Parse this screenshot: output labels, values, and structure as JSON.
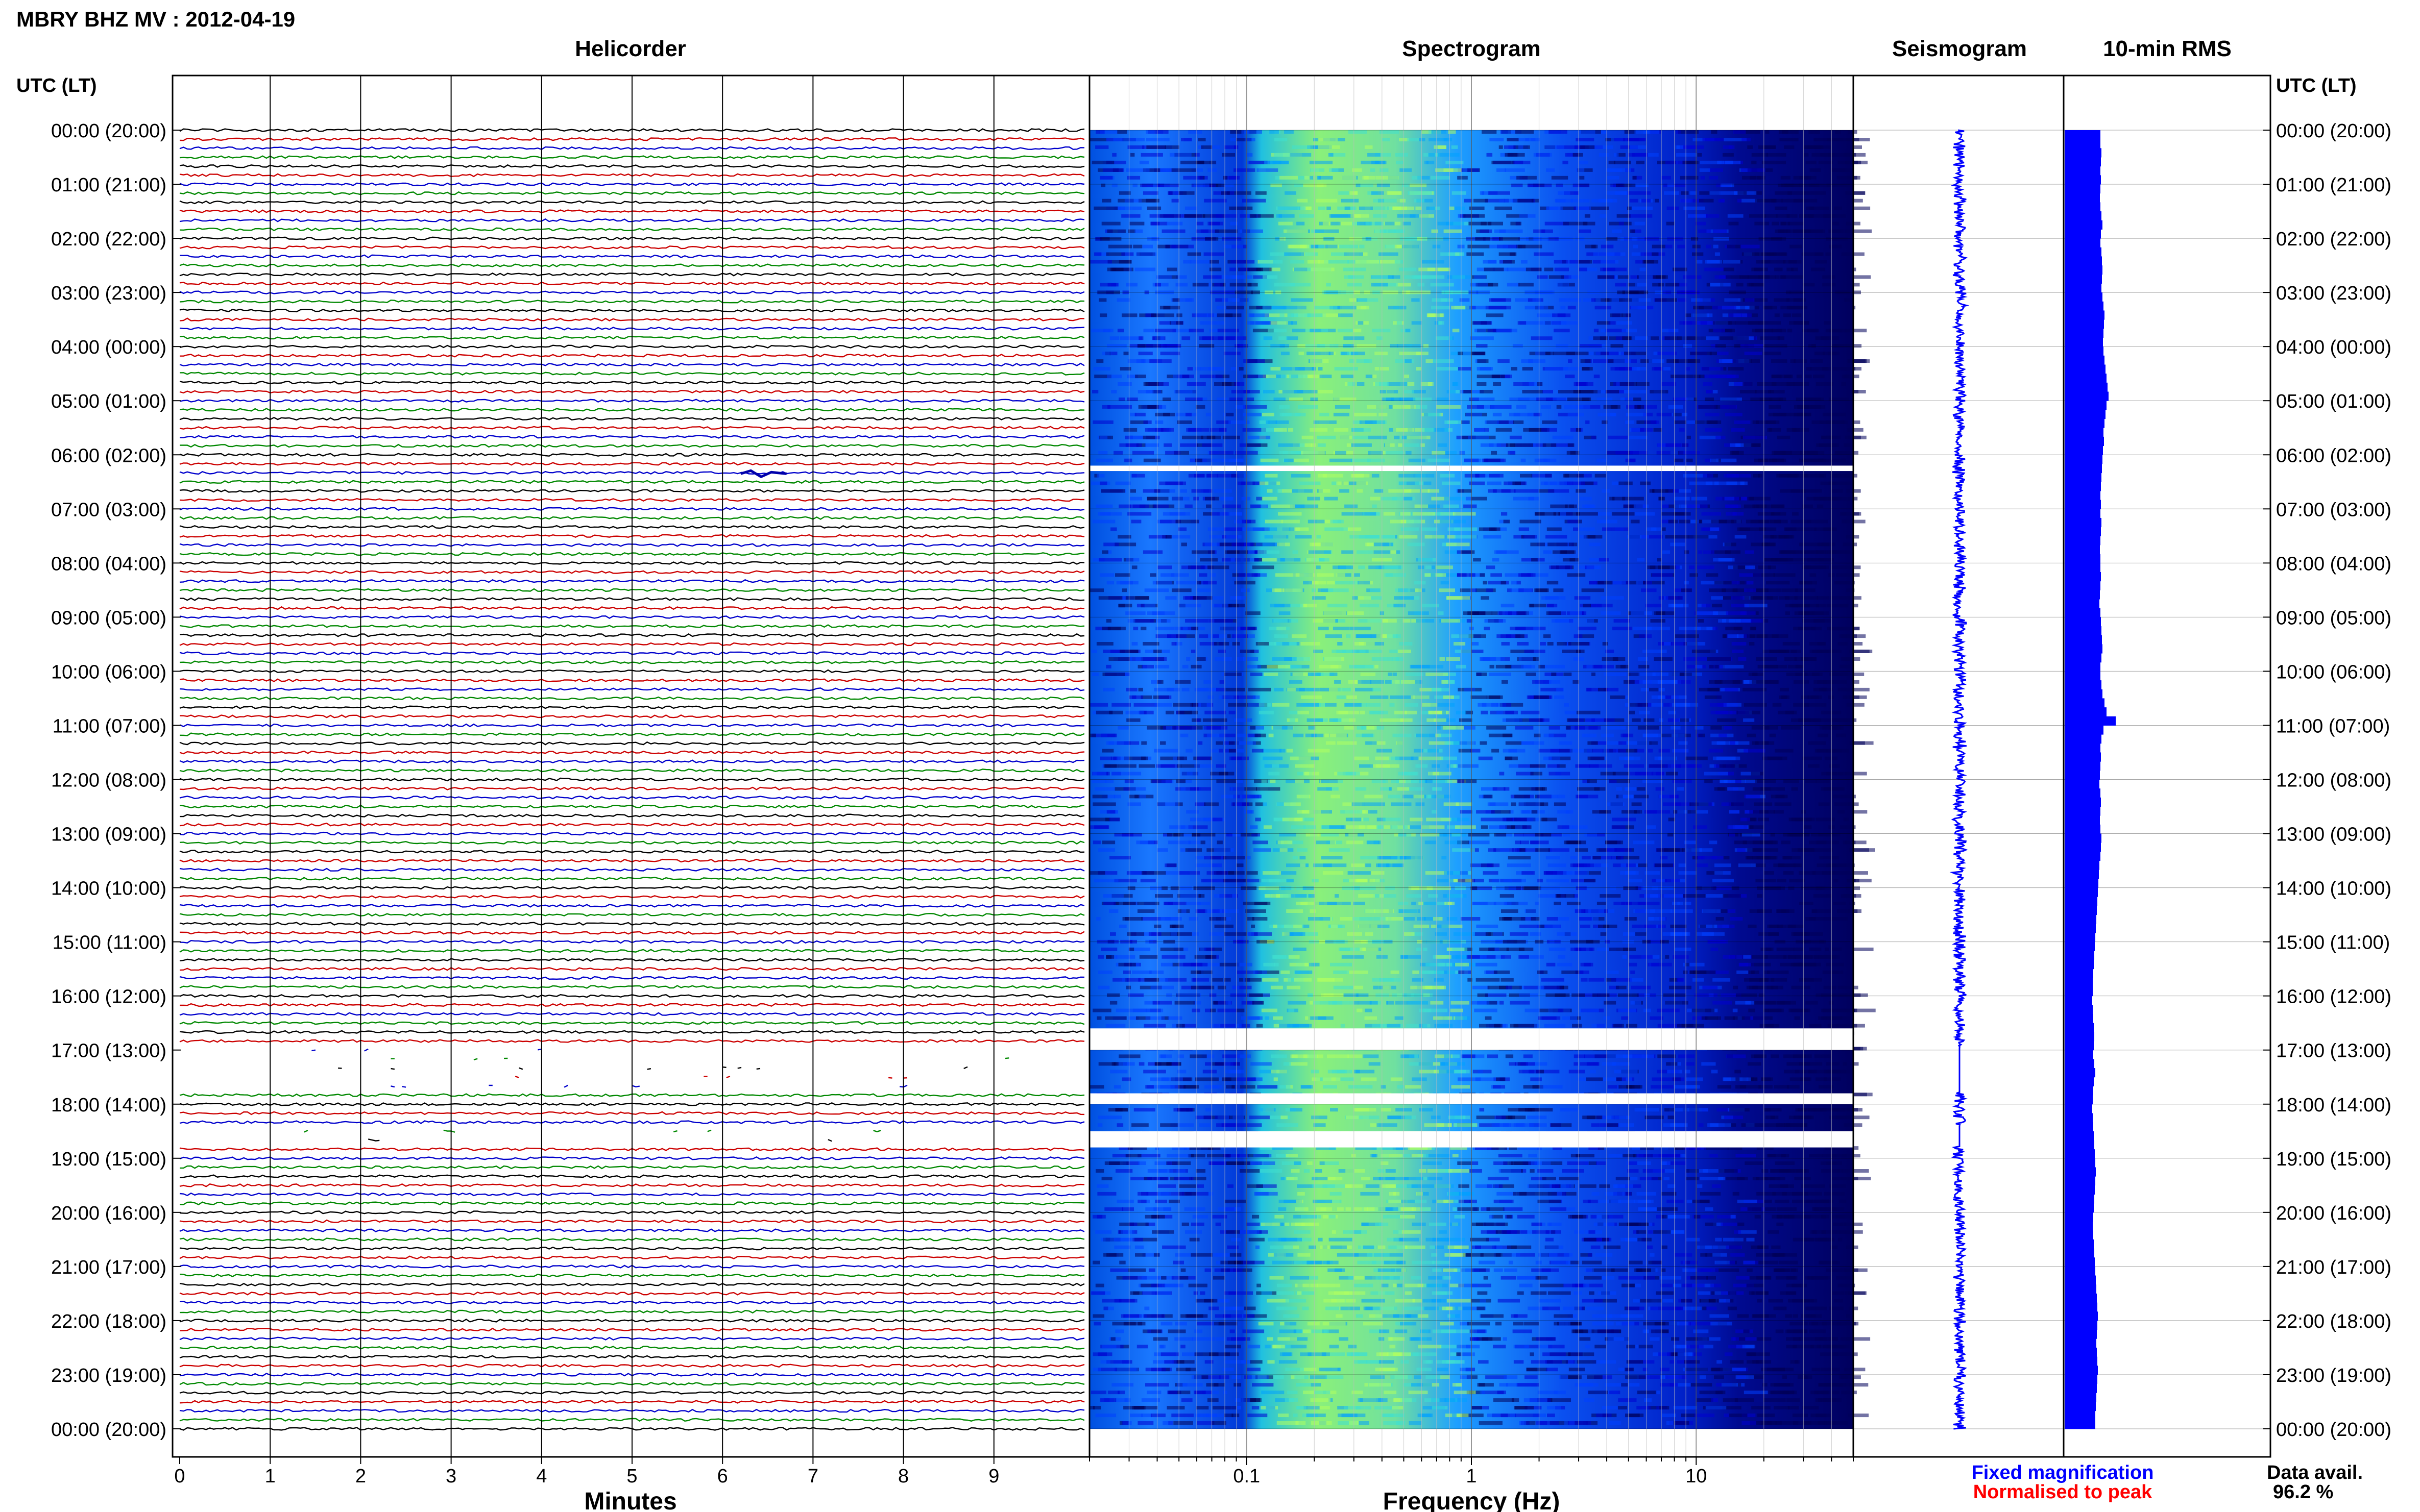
{
  "header": {
    "title": "MBRY BHZ MV : 2012-04-19"
  },
  "panels": {
    "helicorder": "Helicorder",
    "spectrogram": "Spectrogram",
    "seismogram": "Seismogram",
    "rms": "10-min RMS"
  },
  "time_axis_label": "UTC (LT)",
  "time_labels": [
    "00:00 (20:00)",
    "01:00 (21:00)",
    "02:00 (22:00)",
    "03:00 (23:00)",
    "04:00 (00:00)",
    "05:00 (01:00)",
    "06:00 (02:00)",
    "07:00 (03:00)",
    "08:00 (04:00)",
    "09:00 (05:00)",
    "10:00 (06:00)",
    "11:00 (07:00)",
    "12:00 (08:00)",
    "13:00 (09:00)",
    "14:00 (10:00)",
    "15:00 (11:00)",
    "16:00 (12:00)",
    "17:00 (13:00)",
    "18:00 (14:00)",
    "19:00 (15:00)",
    "20:00 (16:00)",
    "21:00 (17:00)",
    "22:00 (18:00)",
    "23:00 (19:00)",
    "00:00 (20:00)"
  ],
  "legend": {
    "fixed": "Fixed magnification",
    "normalised": "Normalised to peak",
    "fixed_color": "#0000ff",
    "normalised_color": "#ff0000"
  },
  "availability": {
    "label": "Data avail.",
    "value": "96.2 %"
  },
  "colors": {
    "trace_cycle": [
      "#000000",
      "#cc0000",
      "#0000cc",
      "#008800"
    ],
    "spectrogram_ramp": [
      "#00005a",
      "#0000d0",
      "#0040ff",
      "#00a0ff",
      "#40e0d0",
      "#b0ff60"
    ],
    "rms_fill": "#0000ff"
  },
  "chart_data": [
    {
      "type": "line",
      "title": "Helicorder",
      "xlabel": "Minutes",
      "x_ticks": [
        "0",
        "1",
        "2",
        "3",
        "4",
        "5",
        "6",
        "7",
        "8",
        "9"
      ],
      "xlim": [
        0,
        10
      ],
      "ylabel": "UTC (LT)",
      "ylim_hours": [
        0,
        24
      ],
      "trace_interval_minutes": 10,
      "traces_per_day": 144,
      "gaps_utc_hours": [
        [
          16.95,
          17.8
        ],
        [
          18.4,
          18.8
        ]
      ],
      "event": {
        "utc_hour": 6.35,
        "minute": 6.2
      }
    },
    {
      "type": "heatmap",
      "title": "Spectrogram",
      "xlabel": "Frequency (Hz)",
      "x_scale": "log",
      "x_ticks": [
        "0.1",
        "1",
        "10"
      ],
      "xlim": [
        0.02,
        50
      ],
      "ylim_hours": [
        0,
        24
      ],
      "gaps_utc_hours": [
        [
          6.2,
          6.3
        ],
        [
          16.6,
          17.0
        ],
        [
          17.8,
          18.0
        ],
        [
          18.5,
          18.8
        ]
      ],
      "band_boundaries_hz": [
        0.15,
        1.0,
        20.0
      ],
      "peak_energy_hz": [
        0.15,
        0.5
      ]
    },
    {
      "type": "line",
      "title": "Seismogram",
      "ylim_hours": [
        0,
        24
      ]
    },
    {
      "type": "bar",
      "title": "10-min RMS",
      "orientation": "horizontal",
      "interval_minutes": 10,
      "ylim_hours": [
        0,
        24
      ],
      "values_relative": [
        0.7,
        0.7,
        0.72,
        0.71,
        0.7,
        0.71,
        0.7,
        0.69,
        0.7,
        0.72,
        0.74,
        0.71,
        0.7,
        0.72,
        0.73,
        0.74,
        0.73,
        0.72,
        0.74,
        0.76,
        0.78,
        0.77,
        0.76,
        0.75,
        0.76,
        0.78,
        0.8,
        0.82,
        0.84,
        0.86,
        0.82,
        0.8,
        0.78,
        0.76,
        0.77,
        0.75,
        0.74,
        0.73,
        0.72,
        0.71,
        0.7,
        0.71,
        0.7,
        0.72,
        0.71,
        0.7,
        0.69,
        0.7,
        0.7,
        0.71,
        0.7,
        0.69,
        0.68,
        0.7,
        0.71,
        0.72,
        0.73,
        0.74,
        0.72,
        0.7,
        0.7,
        0.72,
        0.74,
        0.78,
        0.82,
        1.0,
        0.76,
        0.72,
        0.7,
        0.71,
        0.7,
        0.69,
        0.68,
        0.7,
        0.71,
        0.7,
        0.69,
        0.7,
        0.72,
        0.71,
        0.7,
        0.68,
        0.67,
        0.66,
        0.65,
        0.64,
        0.63,
        0.62,
        0.61,
        0.6,
        0.59,
        0.58,
        0.57,
        0.56,
        0.55,
        0.55,
        0.54,
        0.55,
        0.56,
        0.57,
        0.58,
        0.57,
        0.56,
        0.58,
        0.6,
        0.57,
        0.56,
        0.55,
        0.54,
        0.55,
        0.56,
        0.57,
        0.58,
        0.59,
        0.6,
        0.61,
        0.6,
        0.59,
        0.58,
        0.57,
        0.56,
        0.55,
        0.56,
        0.57,
        0.58,
        0.59,
        0.6,
        0.61,
        0.62,
        0.63,
        0.64,
        0.65,
        0.64,
        0.63,
        0.62,
        0.63,
        0.64,
        0.65,
        0.64,
        0.63,
        0.62,
        0.61,
        0.6,
        0.6
      ]
    }
  ]
}
